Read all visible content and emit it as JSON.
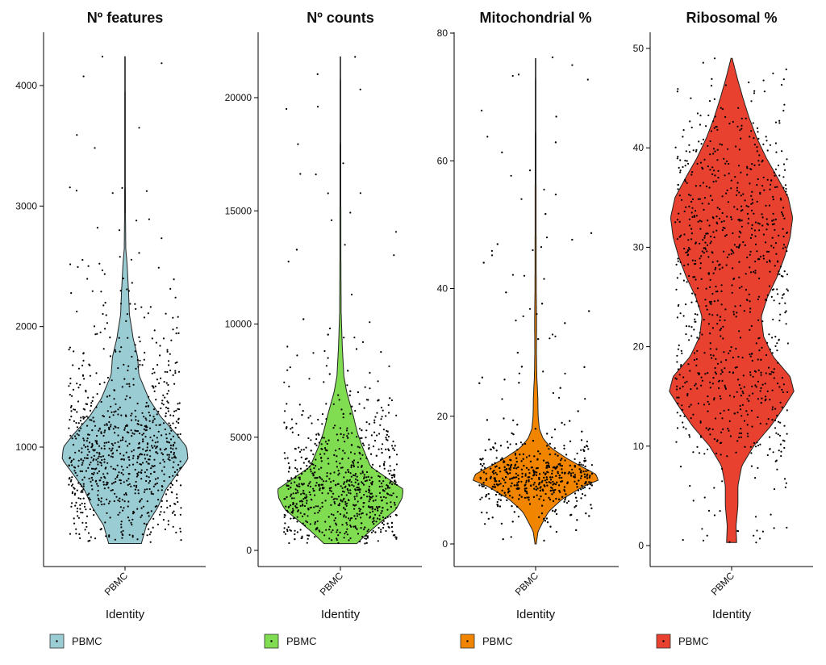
{
  "chart_data": [
    {
      "type": "violin",
      "title": "Nº features",
      "xlabel": "Identity",
      "category": "PBMC",
      "fill": "#9ACCD4",
      "legend": "PBMC",
      "ylim": [
        0,
        4300
      ],
      "yticks": [
        1000,
        2000,
        3000,
        4000
      ],
      "range": [
        200,
        4240
      ],
      "density": [
        [
          200,
          0.26
        ],
        [
          350,
          0.34
        ],
        [
          500,
          0.52
        ],
        [
          650,
          0.65
        ],
        [
          800,
          0.86
        ],
        [
          900,
          1.0
        ],
        [
          1000,
          0.98
        ],
        [
          1100,
          0.83
        ],
        [
          1250,
          0.57
        ],
        [
          1400,
          0.38
        ],
        [
          1600,
          0.22
        ],
        [
          1750,
          0.2
        ],
        [
          1900,
          0.13
        ],
        [
          2100,
          0.07
        ],
        [
          2300,
          0.055
        ],
        [
          2500,
          0.035
        ],
        [
          2650,
          0.012
        ],
        [
          3000,
          0.006
        ],
        [
          4240,
          0.004
        ]
      ],
      "outliers": [
        [
          -0.4,
          4240
        ],
        [
          0.25,
          3650
        ],
        [
          0.2,
          2880
        ],
        [
          -0.1,
          2800
        ],
        [
          -0.05,
          3150
        ]
      ]
    },
    {
      "type": "violin",
      "title": "Nº counts",
      "xlabel": "Identity",
      "category": "PBMC",
      "fill": "#80DC50",
      "legend": "PBMC",
      "ylim": [
        -300,
        22800
      ],
      "yticks": [
        0,
        5000,
        10000,
        15000,
        20000
      ],
      "range": [
        300,
        21800
      ],
      "density": [
        [
          300,
          0.26
        ],
        [
          800,
          0.45
        ],
        [
          1300,
          0.66
        ],
        [
          1800,
          0.88
        ],
        [
          2300,
          0.98
        ],
        [
          2700,
          1.0
        ],
        [
          3200,
          0.74
        ],
        [
          3700,
          0.48
        ],
        [
          4500,
          0.36
        ],
        [
          5200,
          0.27
        ],
        [
          6000,
          0.2
        ],
        [
          7000,
          0.1
        ],
        [
          7700,
          0.055
        ],
        [
          9000,
          0.03
        ],
        [
          10500,
          0.012
        ],
        [
          13000,
          0.008
        ],
        [
          21800,
          0.004
        ]
      ],
      "outliers": [
        [
          -0.4,
          19600
        ],
        [
          0.26,
          21800
        ],
        [
          0.05,
          17100
        ],
        [
          0.08,
          13500
        ],
        [
          0.2,
          11300
        ],
        [
          -0.22,
          8500
        ],
        [
          0.4,
          9200
        ],
        [
          0.06,
          9400
        ]
      ]
    },
    {
      "type": "violin",
      "title": "Mitochondrial %",
      "xlabel": "Identity",
      "category": "PBMC",
      "fill": "#F28500",
      "legend": "PBMC",
      "ylim": [
        -4,
        80
      ],
      "yticks": [
        0,
        20,
        40,
        60,
        80
      ],
      "range": [
        0,
        76
      ],
      "density": [
        [
          0,
          0.01
        ],
        [
          2,
          0.04
        ],
        [
          5,
          0.2
        ],
        [
          7,
          0.42
        ],
        [
          9,
          0.76
        ],
        [
          10,
          1.0
        ],
        [
          11,
          0.95
        ],
        [
          12,
          0.75
        ],
        [
          13.5,
          0.48
        ],
        [
          15,
          0.25
        ],
        [
          16.5,
          0.12
        ],
        [
          18,
          0.06
        ],
        [
          20,
          0.04
        ],
        [
          23,
          0.035
        ],
        [
          26,
          0.02
        ],
        [
          30,
          0.013
        ],
        [
          35,
          0.016
        ],
        [
          40,
          0.01
        ],
        [
          50,
          0.008
        ],
        [
          76,
          0.004
        ]
      ],
      "outliers": [
        [
          -0.3,
          73.5
        ],
        [
          0.3,
          76.2
        ],
        [
          -0.1,
          58.5
        ],
        [
          0.15,
          55.5
        ],
        [
          -0.25,
          54
        ],
        [
          0.1,
          46.5
        ],
        [
          -0.05,
          46
        ],
        [
          0.2,
          48
        ],
        [
          0.15,
          41.5
        ],
        [
          -0.2,
          42
        ],
        [
          0.3,
          32.8
        ],
        [
          0.35,
          32.5
        ],
        [
          -0.35,
          35
        ],
        [
          -0.1,
          36.8
        ],
        [
          0.02,
          36
        ]
      ]
    },
    {
      "type": "violin",
      "title": "Ribosomal %",
      "xlabel": "Identity",
      "category": "PBMC",
      "fill": "#E8412F",
      "legend": "PBMC",
      "ylim": [
        -1.5,
        51.5
      ],
      "yticks": [
        0,
        10,
        20,
        30,
        40,
        50
      ],
      "range": [
        0.3,
        49
      ],
      "density": [
        [
          0.3,
          0.08
        ],
        [
          2,
          0.07
        ],
        [
          4,
          0.1
        ],
        [
          6,
          0.1
        ],
        [
          8,
          0.16
        ],
        [
          10,
          0.35
        ],
        [
          12,
          0.62
        ],
        [
          14,
          0.84
        ],
        [
          15.5,
          0.99
        ],
        [
          17,
          0.93
        ],
        [
          19,
          0.66
        ],
        [
          21,
          0.51
        ],
        [
          23,
          0.47
        ],
        [
          25,
          0.57
        ],
        [
          27,
          0.72
        ],
        [
          29,
          0.84
        ],
        [
          31,
          0.93
        ],
        [
          33,
          0.97
        ],
        [
          35,
          0.9
        ],
        [
          37,
          0.73
        ],
        [
          39,
          0.55
        ],
        [
          41,
          0.4
        ],
        [
          43,
          0.28
        ],
        [
          45,
          0.18
        ],
        [
          47,
          0.09
        ],
        [
          48.5,
          0.03
        ],
        [
          49,
          0.01
        ]
      ],
      "outliers": [
        [
          -0.3,
          49
        ],
        [
          0.4,
          45.5
        ],
        [
          0.35,
          44.7
        ],
        [
          -0.5,
          0.5
        ],
        [
          0.5,
          0.7
        ],
        [
          -0.4,
          3.5
        ],
        [
          0.45,
          1.5
        ]
      ]
    }
  ]
}
